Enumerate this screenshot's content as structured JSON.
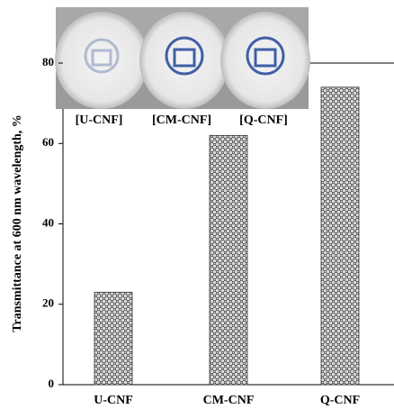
{
  "chart_data": {
    "type": "bar",
    "y_label": "Transmittance at 600 nm wavelength, %",
    "categories": [
      "U-CNF",
      "CM-CNF",
      "Q-CNF"
    ],
    "values": [
      23,
      62,
      74
    ],
    "ylim": [
      0,
      80
    ],
    "yticks": [
      0,
      20,
      40,
      60,
      80
    ],
    "inset_labels": [
      "[U-CNF]",
      "[CM-CNF]",
      "[Q-CNF]"
    ]
  }
}
